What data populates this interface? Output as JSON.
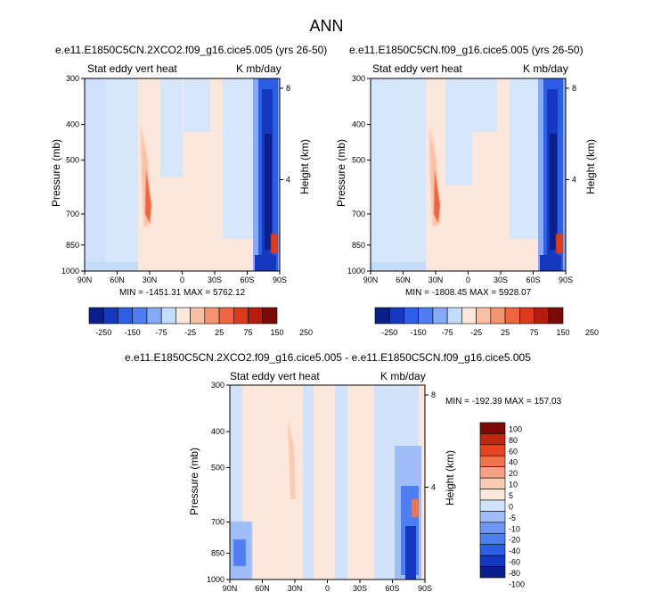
{
  "figure_title": "ANN",
  "colors": {
    "palette_13": [
      "#0a1f8a",
      "#1438c0",
      "#2c5ee6",
      "#4f7ef2",
      "#86aaf5",
      "#c3dcfa",
      "#fce7dc",
      "#f8c1a6",
      "#f49470",
      "#ee6540",
      "#dc3a1c",
      "#b41d0e",
      "#7a0a05"
    ],
    "palette_14": [
      "#0a1f8a",
      "#1438c0",
      "#2c5ee6",
      "#4f7ef2",
      "#6f96f3",
      "#9fbef7",
      "#d1e3fb",
      "#fce7dc",
      "#f9cbb3",
      "#f5a282",
      "#ef744e",
      "#e14722",
      "#bf2710",
      "#7a0a05"
    ]
  },
  "panels": [
    {
      "title": "e.e11.E1850C5CN.2XCO2.f09_g16.cice5.005 (yrs 26-50)",
      "left_label": "Stat eddy vert heat",
      "right_label": "K mb/day",
      "y_axis_label": "Pressure (mb)",
      "y2_axis_label": "Height (km)",
      "stats": "MIN = -1451.31   MAX = 5762.12"
    },
    {
      "title": "e.e11.E1850C5CN.f09_g16.cice5.005 (yrs 26-50)",
      "left_label": "Stat eddy vert heat",
      "right_label": "K mb/day",
      "y_axis_label": "Pressure (mb)",
      "y2_axis_label": "Height (km)",
      "stats": "MIN = -1808.45   MAX = 5928.07"
    },
    {
      "title": "e.e11.E1850C5CN.2XCO2.f09_g16.cice5.005 - e.e11.E1850C5CN.f09_g16.cice5.005",
      "left_label": "Stat eddy vert heat",
      "right_label": "K mb/day",
      "y_axis_label": "Pressure (mb)",
      "y2_axis_label": "Height (km)",
      "stats": "MIN = -192.39   MAX = 157.03"
    }
  ],
  "axes": {
    "x_ticks": [
      "90N",
      "60N",
      "30N",
      "0",
      "30S",
      "60S",
      "90S"
    ],
    "y_ticks": [
      "300",
      "400",
      "500",
      "700",
      "850",
      "1000"
    ],
    "y2_ticks": [
      "8",
      "4"
    ]
  },
  "colorbars": {
    "horizontal_labels": [
      "-250",
      "-150",
      "-75",
      "-25",
      "25",
      "75",
      "150",
      "250"
    ],
    "vertical_labels": [
      "100",
      "80",
      "60",
      "40",
      "20",
      "10",
      "5",
      "0",
      "-5",
      "-10",
      "-20",
      "-40",
      "-60",
      "-80",
      "-100"
    ]
  },
  "chart_data": [
    {
      "type": "heatmap",
      "title": "e.e11.E1850C5CN.2XCO2.f09_g16.cice5.005 (yrs 26-50)",
      "variable": "Stat eddy vert heat",
      "units": "K mb/day",
      "x_range": [
        90,
        -90
      ],
      "x_ticks": [
        "90N",
        "60N",
        "30N",
        "0",
        "30S",
        "60S",
        "90S"
      ],
      "ylim_pressure_mb": [
        1000,
        300
      ],
      "y_scale": "log",
      "y_ticks": [
        300,
        400,
        500,
        700,
        850,
        1000
      ],
      "height_ticks_km": [
        8,
        4
      ],
      "min": -1451.31,
      "max": 5762.12,
      "colorbar_levels": [
        -250,
        -150,
        -75,
        -25,
        25,
        75,
        150,
        250
      ]
    },
    {
      "type": "heatmap",
      "title": "e.e11.E1850C5CN.f09_g16.cice5.005 (yrs 26-50)",
      "variable": "Stat eddy vert heat",
      "units": "K mb/day",
      "x_range": [
        90,
        -90
      ],
      "x_ticks": [
        "90N",
        "60N",
        "30N",
        "0",
        "30S",
        "60S",
        "90S"
      ],
      "ylim_pressure_mb": [
        1000,
        300
      ],
      "y_scale": "log",
      "y_ticks": [
        300,
        400,
        500,
        700,
        850,
        1000
      ],
      "height_ticks_km": [
        8,
        4
      ],
      "min": -1808.45,
      "max": 5928.07,
      "colorbar_levels": [
        -250,
        -150,
        -75,
        -25,
        25,
        75,
        150,
        250
      ]
    },
    {
      "type": "heatmap",
      "title": "e.e11.E1850C5CN.2XCO2.f09_g16.cice5.005 - e.e11.E1850C5CN.f09_g16.cice5.005",
      "variable": "Stat eddy vert heat",
      "units": "K mb/day",
      "x_range": [
        90,
        -90
      ],
      "x_ticks": [
        "90N",
        "60N",
        "30N",
        "0",
        "30S",
        "60S",
        "90S"
      ],
      "ylim_pressure_mb": [
        1000,
        300
      ],
      "y_scale": "log",
      "y_ticks": [
        300,
        400,
        500,
        700,
        850,
        1000
      ],
      "height_ticks_km": [
        8,
        4
      ],
      "min": -192.39,
      "max": 157.03,
      "colorbar_levels": [
        100,
        80,
        60,
        40,
        20,
        10,
        5,
        0,
        -5,
        -10,
        -20,
        -40,
        -60,
        -80,
        -100
      ]
    }
  ]
}
